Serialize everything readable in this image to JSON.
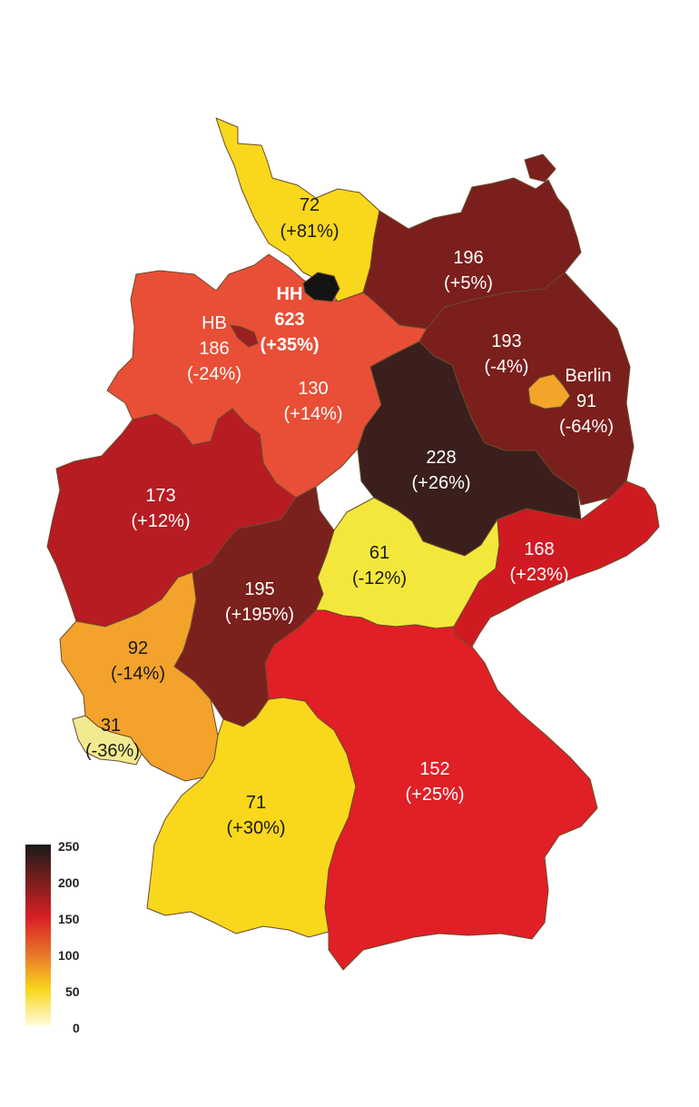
{
  "map": {
    "states": [
      {
        "id": "sh",
        "value": "72",
        "change": "(+81%)",
        "color": "#f9d71c",
        "text_color": "#1a1a1a"
      },
      {
        "id": "mv",
        "value": "196",
        "change": "(+5%)",
        "color": "#7a1f1d",
        "text_color": "#ffffff"
      },
      {
        "id": "hh",
        "abbr": "HH",
        "value": "623",
        "change": "(+35%)",
        "color": "#141414",
        "text_color": "#ffffff"
      },
      {
        "id": "hb",
        "abbr": "HB",
        "value": "186",
        "change": "(-24%)",
        "color": "#9a2020",
        "text_color": "#ffffff"
      },
      {
        "id": "ni",
        "value": "130",
        "change": "(+14%)",
        "color": "#e84f36",
        "text_color": "#ffffff"
      },
      {
        "id": "bb",
        "value": "193",
        "change": "(-4%)",
        "color": "#7b1f1d",
        "text_color": "#ffffff"
      },
      {
        "id": "be",
        "name": "Berlin",
        "value": "91",
        "change": "(-64%)",
        "color": "#f2a52a",
        "text_color": "#ffffff"
      },
      {
        "id": "st",
        "value": "228",
        "change": "(+26%)",
        "color": "#3a1f1c",
        "text_color": "#ffffff"
      },
      {
        "id": "nw",
        "value": "173",
        "change": "(+12%)",
        "color": "#b71c22",
        "text_color": "#ffffff"
      },
      {
        "id": "sn",
        "value": "168",
        "change": "(+23%)",
        "color": "#d01a22",
        "text_color": "#ffffff"
      },
      {
        "id": "th",
        "value": "61",
        "change": "(-12%)",
        "color": "#f4e73c",
        "text_color": "#1a1a1a"
      },
      {
        "id": "he",
        "value": "195",
        "change": "(+195%)",
        "color": "#7a201d",
        "text_color": "#ffffff"
      },
      {
        "id": "rp",
        "value": "92",
        "change": "(-14%)",
        "color": "#f3a22c",
        "text_color": "#1a1a1a"
      },
      {
        "id": "sl",
        "value": "31",
        "change": "(-36%)",
        "color": "#f2ea90",
        "text_color": "#1a1a1a"
      },
      {
        "id": "bw",
        "value": "71",
        "change": "(+30%)",
        "color": "#f9d71c",
        "text_color": "#1a1a1a"
      },
      {
        "id": "by",
        "value": "152",
        "change": "(+25%)",
        "color": "#e01f26",
        "text_color": "#ffffff"
      }
    ]
  },
  "legend": {
    "ticks": [
      "250",
      "200",
      "150",
      "100",
      "50",
      "0"
    ],
    "gradient": [
      "#1a1a1a",
      "#7a1f1d",
      "#d81f26",
      "#e8742a",
      "#f9d71c",
      "#fffde0"
    ]
  }
}
